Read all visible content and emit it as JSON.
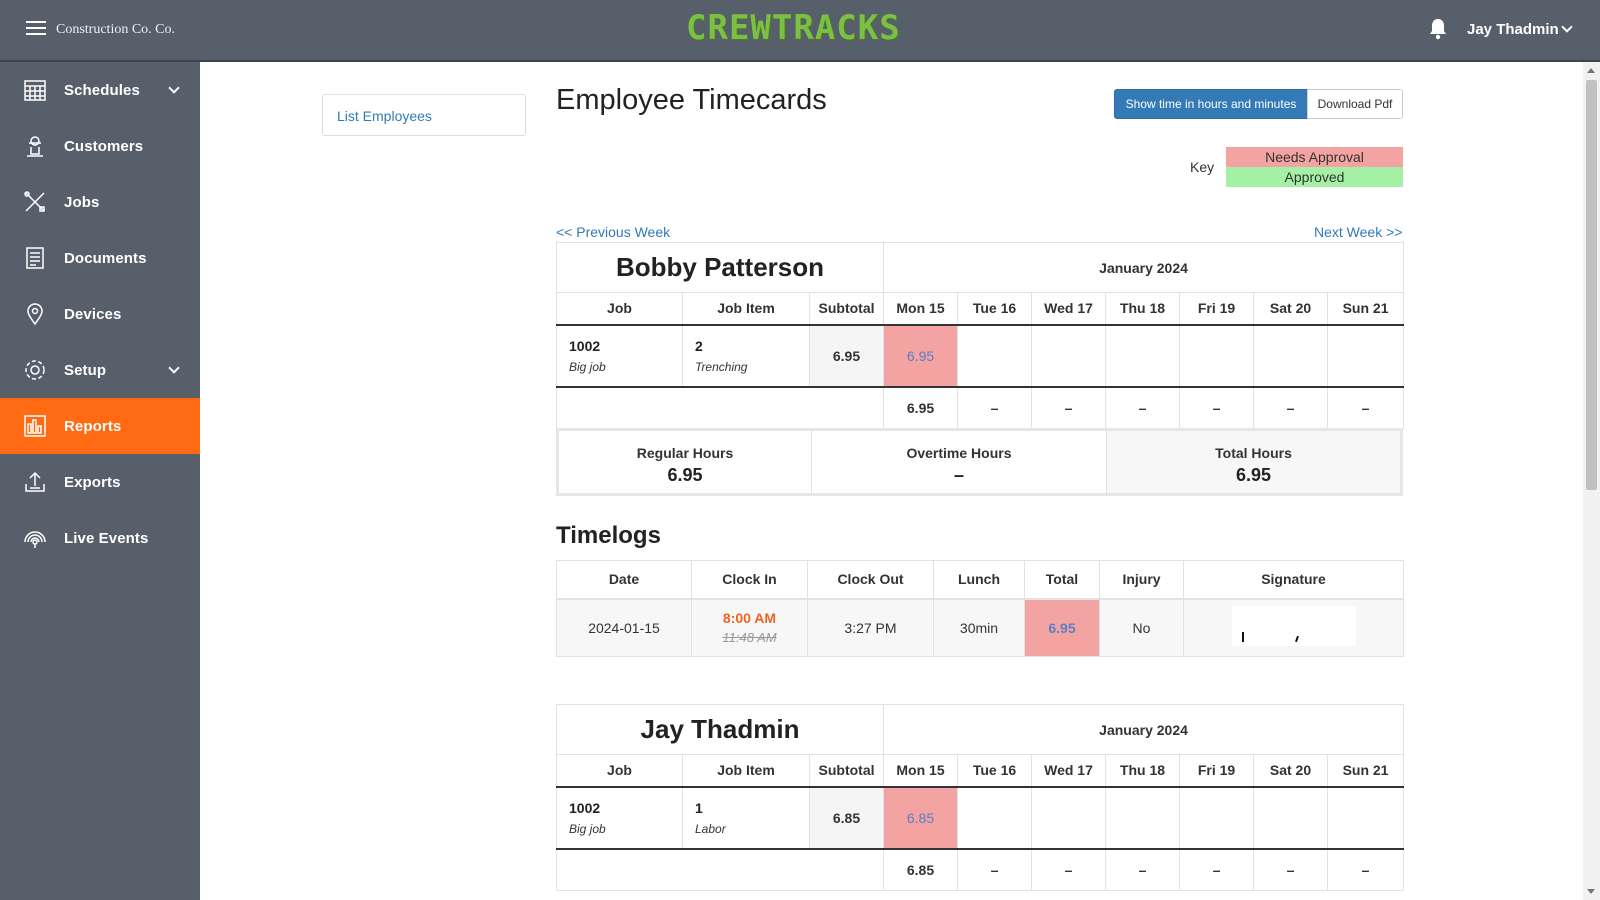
{
  "app": {
    "company": "Construction Co. Co.",
    "logo_text": "CREWTRACKS",
    "user_name": "Jay Thadmin"
  },
  "sidebar": {
    "items": [
      {
        "label": "Schedules",
        "icon": "calendar-icon",
        "has_chevron": true
      },
      {
        "label": "Customers",
        "icon": "customer-icon",
        "has_chevron": false
      },
      {
        "label": "Jobs",
        "icon": "tools-icon",
        "has_chevron": false
      },
      {
        "label": "Documents",
        "icon": "documents-icon",
        "has_chevron": false
      },
      {
        "label": "Devices",
        "icon": "location-pin-icon",
        "has_chevron": false
      },
      {
        "label": "Setup",
        "icon": "gear-icon",
        "has_chevron": true
      },
      {
        "label": "Reports",
        "icon": "bar-chart-icon",
        "has_chevron": false,
        "active": true
      },
      {
        "label": "Exports",
        "icon": "upload-icon",
        "has_chevron": false
      },
      {
        "label": "Live Events",
        "icon": "broadcast-icon",
        "has_chevron": false
      }
    ]
  },
  "left_panel": {
    "list_employees": "List Employees"
  },
  "page": {
    "title": "Employee Timecards",
    "show_time_button": "Show time in hours and minutes",
    "download_pdf_button": "Download Pdf",
    "key_label": "Key",
    "key_needs_approval": "Needs Approval",
    "key_approved": "Approved",
    "prev_week": "<< Previous Week",
    "next_week": "Next Week >>"
  },
  "colors": {
    "sidebar_bg": "#575f6b",
    "active_nav": "#ff6a13",
    "logo_green": "#7bc043",
    "needs_approval": "#f4a3a3",
    "approved": "#a4f0a4",
    "link": "#337ab7"
  },
  "timecards": [
    {
      "employee": "Bobby Patterson",
      "month": "January 2024",
      "headers": [
        "Job",
        "Job Item",
        "Subtotal",
        "Mon 15",
        "Tue 16",
        "Wed 17",
        "Thu 18",
        "Fri 19",
        "Sat 20",
        "Sun 21"
      ],
      "row": {
        "job_number": "1002",
        "job_name": "Big job",
        "item_number": "2",
        "item_name": "Trenching",
        "subtotal": "6.95",
        "days": [
          "6.95",
          "",
          "",
          "",
          "",
          "",
          ""
        ]
      },
      "totals": [
        "6.95",
        "–",
        "–",
        "–",
        "–",
        "–",
        "–"
      ],
      "summary": {
        "regular_label": "Regular Hours",
        "regular_value": "6.95",
        "overtime_label": "Overtime Hours",
        "overtime_value": "–",
        "total_label": "Total Hours",
        "total_value": "6.95"
      }
    },
    {
      "employee": "Jay Thadmin",
      "month": "January 2024",
      "headers": [
        "Job",
        "Job Item",
        "Subtotal",
        "Mon 15",
        "Tue 16",
        "Wed 17",
        "Thu 18",
        "Fri 19",
        "Sat 20",
        "Sun 21"
      ],
      "row": {
        "job_number": "1002",
        "job_name": "Big job",
        "item_number": "1",
        "item_name": "Labor",
        "subtotal": "6.85",
        "days": [
          "6.85",
          "",
          "",
          "",
          "",
          "",
          ""
        ]
      },
      "totals": [
        "6.85",
        "–",
        "–",
        "–",
        "–",
        "–",
        "–"
      ]
    }
  ],
  "timelogs": {
    "title": "Timelogs",
    "headers": [
      "Date",
      "Clock In",
      "Clock Out",
      "Lunch",
      "Total",
      "Injury",
      "Signature"
    ],
    "rows": [
      {
        "date": "2024-01-15",
        "clock_in": "8:00 AM",
        "clock_in_original": "11:48 AM",
        "clock_out": "3:27 PM",
        "lunch": "30min",
        "total": "6.95",
        "injury": "No"
      }
    ]
  }
}
